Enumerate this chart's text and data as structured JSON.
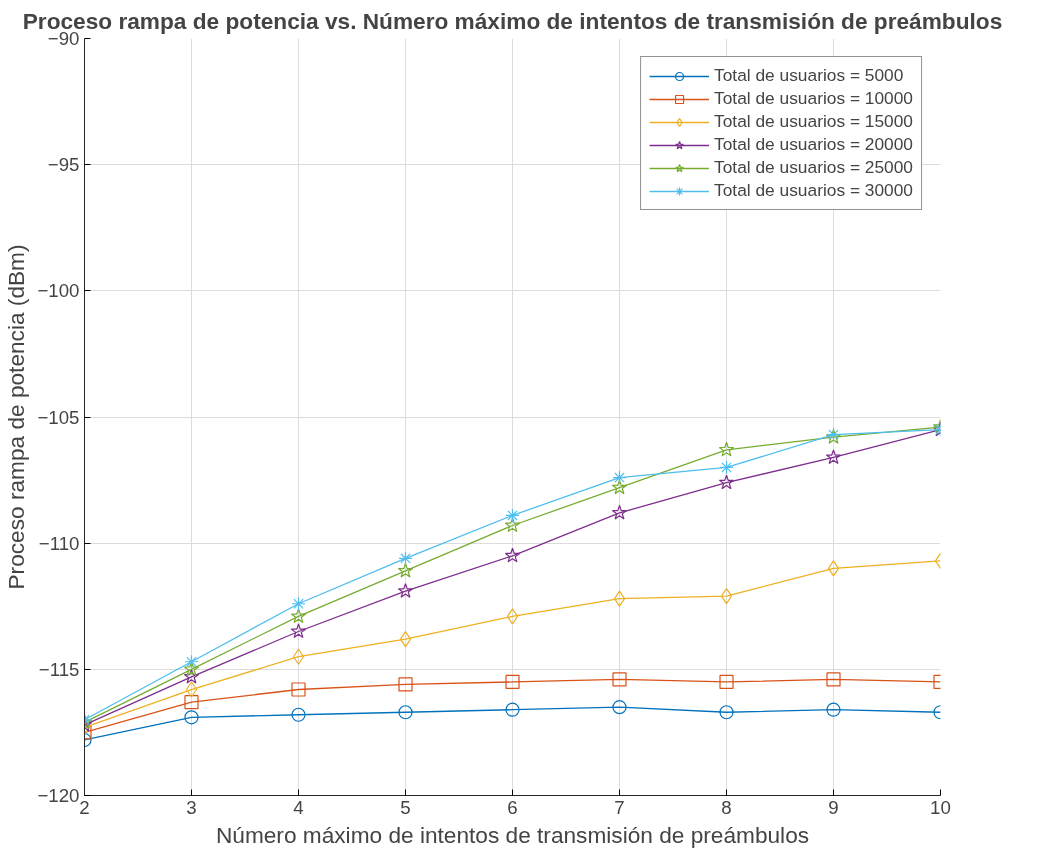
{
  "chart_data": {
    "type": "line",
    "title": "Proceso rampa de potencia vs. Número máximo de intentos de transmisión de preámbulos",
    "xlabel": "Número máximo de intentos de transmisión de preámbulos",
    "ylabel": "Proceso rampa de potencia (dBm)",
    "x": [
      2,
      3,
      4,
      5,
      6,
      7,
      8,
      9,
      10
    ],
    "xlim": [
      2,
      10
    ],
    "xticks": [
      2,
      3,
      4,
      5,
      6,
      7,
      8,
      9,
      10
    ],
    "ylim": [
      -120,
      -90
    ],
    "yticks": [
      -120,
      -115,
      -110,
      -105,
      -100,
      -95,
      -90
    ],
    "grid": true,
    "legend": "top right",
    "line_style": "solid",
    "series": [
      {
        "name": "Total de usuarios = 5000",
        "color": "#0072bd",
        "marker": "circle",
        "values": [
          -117.8,
          -116.9,
          -116.8,
          -116.7,
          -116.6,
          -116.5,
          -116.7,
          -116.6,
          -116.7
        ]
      },
      {
        "name": "Total de usuarios = 10000",
        "color": "#d95319",
        "marker": "square",
        "values": [
          -117.5,
          -116.3,
          -115.8,
          -115.6,
          -115.5,
          -115.4,
          -115.5,
          -115.4,
          -115.5
        ]
      },
      {
        "name": "Total de usuarios = 15000",
        "color": "#edb120",
        "marker": "diamond",
        "values": [
          -117.3,
          -115.8,
          -114.5,
          -113.8,
          -112.9,
          -112.2,
          -112.1,
          -111.0,
          -110.7
        ]
      },
      {
        "name": "Total de usuarios = 20000",
        "color": "#7e2f8e",
        "marker": "star",
        "values": [
          -117.2,
          -115.3,
          -113.5,
          -111.9,
          -110.5,
          -108.8,
          -107.6,
          -106.6,
          -105.5
        ]
      },
      {
        "name": "Total de usuarios = 25000",
        "color": "#77ac30",
        "marker": "star",
        "values": [
          -117.1,
          -115.0,
          -112.9,
          -111.1,
          -109.3,
          -107.8,
          -106.3,
          -105.8,
          -105.4
        ]
      },
      {
        "name": "Total de usuarios = 30000",
        "color": "#4dbeee",
        "marker": "cross",
        "values": [
          -117.0,
          -114.7,
          -112.4,
          -110.6,
          -108.9,
          -107.4,
          -107.0,
          -105.7,
          -105.5
        ]
      }
    ]
  }
}
